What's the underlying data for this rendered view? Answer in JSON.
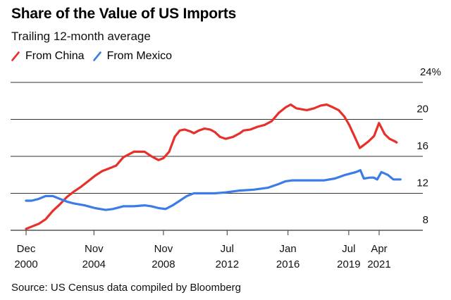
{
  "title": "Share of the Value of US Imports",
  "subtitle": "Trailing 12-month average",
  "source": "Source: US Census data compiled by Bloomberg",
  "legend": [
    {
      "label": "From China",
      "color": "#e8302a"
    },
    {
      "label": "From Mexico",
      "color": "#3b7ce8"
    }
  ],
  "chart_data": {
    "type": "line",
    "title": "Share of the Value of US Imports",
    "subtitle": "Trailing 12-month average",
    "xlabel": "",
    "ylabel": "",
    "ylim": [
      8,
      24
    ],
    "yticks": [
      {
        "value": 24,
        "label": "24%"
      },
      {
        "value": 20,
        "label": "20"
      },
      {
        "value": 16,
        "label": "16"
      },
      {
        "value": 12,
        "label": "12"
      },
      {
        "value": 8,
        "label": "8"
      }
    ],
    "xlim": [
      2000.92,
      2022.4
    ],
    "xticks": [
      {
        "value": 2000.92,
        "line1": "Dec",
        "line2": "2000"
      },
      {
        "value": 2004.83,
        "line1": "Nov",
        "line2": "2004"
      },
      {
        "value": 2008.83,
        "line1": "Nov",
        "line2": "2008"
      },
      {
        "value": 2012.5,
        "line1": "Jul",
        "line2": "2012"
      },
      {
        "value": 2016.0,
        "line1": "Jan",
        "line2": "2016"
      },
      {
        "value": 2019.5,
        "line1": "Jul",
        "line2": "2019"
      },
      {
        "value": 2021.25,
        "line1": "Apr",
        "line2": "2021"
      }
    ],
    "grid": true,
    "legend_position": "top-left",
    "series": [
      {
        "name": "From China",
        "color": "#e8302a",
        "points": [
          [
            2000.92,
            8.15
          ],
          [
            2001.24,
            8.4
          ],
          [
            2001.65,
            8.7
          ],
          [
            2002.05,
            9.2
          ],
          [
            2002.46,
            10.1
          ],
          [
            2002.86,
            10.8
          ],
          [
            2003.27,
            11.6
          ],
          [
            2003.68,
            12.2
          ],
          [
            2004.08,
            12.7
          ],
          [
            2004.49,
            13.3
          ],
          [
            2004.89,
            13.9
          ],
          [
            2005.3,
            14.4
          ],
          [
            2005.71,
            14.7
          ],
          [
            2006.11,
            15.0
          ],
          [
            2006.52,
            15.9
          ],
          [
            2007.13,
            16.5
          ],
          [
            2007.74,
            16.5
          ],
          [
            2008.14,
            16.0
          ],
          [
            2008.55,
            15.6
          ],
          [
            2008.83,
            15.8
          ],
          [
            2009.16,
            16.5
          ],
          [
            2009.48,
            18.1
          ],
          [
            2009.77,
            18.8
          ],
          [
            2010.05,
            18.9
          ],
          [
            2010.38,
            18.7
          ],
          [
            2010.58,
            18.5
          ],
          [
            2010.87,
            18.8
          ],
          [
            2011.19,
            19.0
          ],
          [
            2011.52,
            18.9
          ],
          [
            2011.81,
            18.6
          ],
          [
            2012.09,
            18.1
          ],
          [
            2012.42,
            17.9
          ],
          [
            2012.83,
            18.1
          ],
          [
            2013.23,
            18.5
          ],
          [
            2013.44,
            18.8
          ],
          [
            2013.84,
            18.9
          ],
          [
            2014.25,
            19.2
          ],
          [
            2014.65,
            19.4
          ],
          [
            2015.06,
            19.8
          ],
          [
            2015.47,
            20.7
          ],
          [
            2015.87,
            21.3
          ],
          [
            2016.16,
            21.6
          ],
          [
            2016.48,
            21.2
          ],
          [
            2017.09,
            21.0
          ],
          [
            2017.5,
            21.2
          ],
          [
            2017.9,
            21.5
          ],
          [
            2018.23,
            21.6
          ],
          [
            2018.59,
            21.3
          ],
          [
            2018.92,
            21.0
          ],
          [
            2019.25,
            20.3
          ],
          [
            2019.53,
            19.4
          ],
          [
            2019.82,
            18.2
          ],
          [
            2020.14,
            16.9
          ],
          [
            2020.35,
            17.2
          ],
          [
            2020.63,
            17.6
          ],
          [
            2020.96,
            18.2
          ],
          [
            2021.24,
            19.6
          ],
          [
            2021.57,
            18.4
          ],
          [
            2021.85,
            17.9
          ],
          [
            2022.18,
            17.6
          ],
          [
            2022.26,
            17.5
          ]
        ]
      },
      {
        "name": "From Mexico",
        "color": "#3b7ce8",
        "points": [
          [
            2000.92,
            11.2
          ],
          [
            2001.24,
            11.2
          ],
          [
            2001.65,
            11.4
          ],
          [
            2002.05,
            11.7
          ],
          [
            2002.46,
            11.7
          ],
          [
            2002.86,
            11.4
          ],
          [
            2003.27,
            11.1
          ],
          [
            2003.68,
            10.9
          ],
          [
            2004.29,
            10.7
          ],
          [
            2004.89,
            10.4
          ],
          [
            2005.5,
            10.2
          ],
          [
            2005.91,
            10.3
          ],
          [
            2006.52,
            10.6
          ],
          [
            2007.13,
            10.6
          ],
          [
            2007.74,
            10.7
          ],
          [
            2008.14,
            10.6
          ],
          [
            2008.55,
            10.4
          ],
          [
            2008.95,
            10.3
          ],
          [
            2009.36,
            10.7
          ],
          [
            2009.77,
            11.2
          ],
          [
            2010.17,
            11.7
          ],
          [
            2010.58,
            12.0
          ],
          [
            2011.19,
            12.0
          ],
          [
            2011.8,
            12.0
          ],
          [
            2012.41,
            12.1
          ],
          [
            2013.22,
            12.3
          ],
          [
            2014.03,
            12.4
          ],
          [
            2014.85,
            12.6
          ],
          [
            2015.46,
            13.0
          ],
          [
            2015.86,
            13.3
          ],
          [
            2016.27,
            13.4
          ],
          [
            2016.67,
            13.4
          ],
          [
            2017.28,
            13.4
          ],
          [
            2018.09,
            13.4
          ],
          [
            2018.7,
            13.6
          ],
          [
            2019.31,
            14.0
          ],
          [
            2019.92,
            14.3
          ],
          [
            2020.17,
            14.5
          ],
          [
            2020.37,
            13.6
          ],
          [
            2020.73,
            13.7
          ],
          [
            2020.94,
            13.7
          ],
          [
            2021.14,
            13.5
          ],
          [
            2021.38,
            14.3
          ],
          [
            2021.75,
            14.0
          ],
          [
            2022.07,
            13.5
          ],
          [
            2022.48,
            13.5
          ]
        ]
      }
    ]
  }
}
